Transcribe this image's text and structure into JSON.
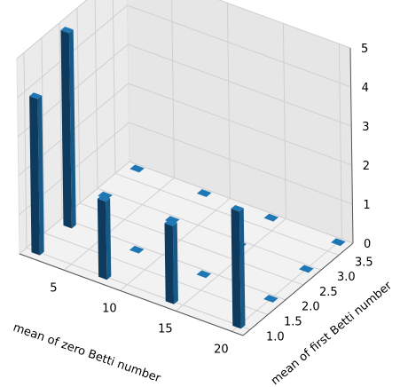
{
  "chart_data": {
    "type": "bar3d",
    "title": "",
    "xlabel": "mean of zero Betti number",
    "ylabel": "mean of first Betti number",
    "zlabel": "",
    "xlim": [
      1,
      21
    ],
    "ylim": [
      0.8,
      3.9
    ],
    "zlim": [
      0,
      5
    ],
    "xticks": [
      "5",
      "10",
      "15",
      "20"
    ],
    "yticks": [
      "1.0",
      "1.5",
      "2.0",
      "2.5",
      "3.0",
      "3.5"
    ],
    "zticks": [
      "0",
      "1",
      "2",
      "3",
      "4",
      "5"
    ],
    "grid": true,
    "bar_color": "#1f77b4",
    "bars": [
      {
        "x": 2,
        "y": 1.0,
        "z": 4
      },
      {
        "x": 2,
        "y": 1.9,
        "z": 5
      },
      {
        "x": 2,
        "y": 2.9,
        "z": 0
      },
      {
        "x": 2,
        "y": 3.8,
        "z": 0
      },
      {
        "x": 8,
        "y": 1.0,
        "z": 2
      },
      {
        "x": 8,
        "y": 1.9,
        "z": 0
      },
      {
        "x": 8,
        "y": 2.9,
        "z": 0
      },
      {
        "x": 8,
        "y": 3.8,
        "z": 0
      },
      {
        "x": 14,
        "y": 1.0,
        "z": 2
      },
      {
        "x": 14,
        "y": 1.9,
        "z": 0
      },
      {
        "x": 14,
        "y": 2.9,
        "z": 0
      },
      {
        "x": 14,
        "y": 3.8,
        "z": 0
      },
      {
        "x": 20,
        "y": 1.0,
        "z": 3
      },
      {
        "x": 20,
        "y": 1.9,
        "z": 0
      },
      {
        "x": 20,
        "y": 2.9,
        "z": 0
      },
      {
        "x": 20,
        "y": 3.8,
        "z": 0
      }
    ]
  }
}
